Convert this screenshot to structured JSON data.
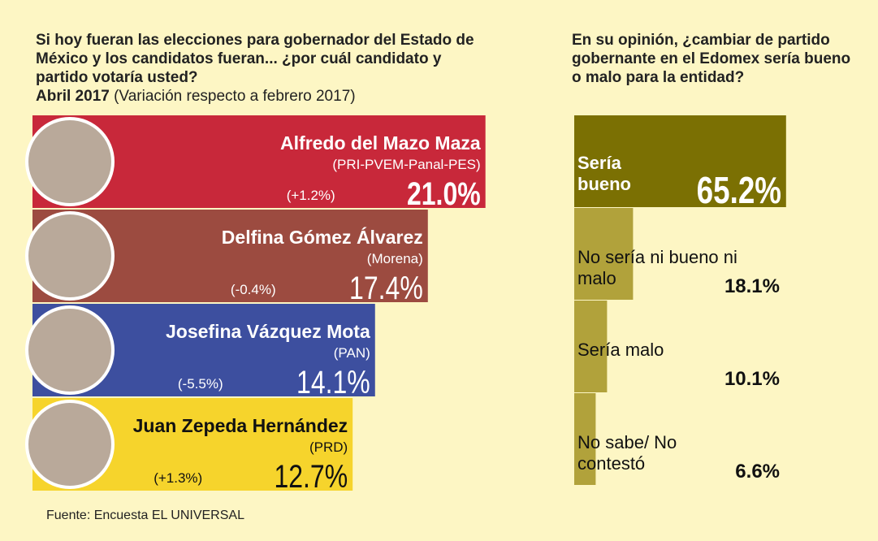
{
  "chart_data": [
    {
      "type": "hbar",
      "title": "Si hoy fueran las elecciones para gobernador del Estado de México y los candidatos fueran... ¿por cuál candidato y partido votaría usted?",
      "subtitle": "Abril 2017",
      "subtitle_note": "(Variación respecto a febrero 2017)",
      "categories": [
        "Alfredo del Mazo Maza",
        "Delfina Gómez Álvarez",
        "Josefina Vázquez Mota",
        "Juan Zepeda Hernández"
      ],
      "parties": [
        "(PRI-PVEM-Panal-PES)",
        "(Morena)",
        "(PAN)",
        "(PRD)"
      ],
      "change_labels": [
        "(+1.2%)",
        "(-0.4%)",
        "(-5.5%)",
        "(+1.3%)"
      ],
      "values": [
        21.0,
        17.4,
        14.1,
        12.7
      ],
      "value_labels": [
        "21.0%",
        "17.4%",
        "14.1%",
        "12.7%"
      ],
      "colors": [
        "#c8283a",
        "#9c4b40",
        "#3d4f9f",
        "#f6d42c"
      ],
      "source": "Fuente: Encuesta EL UNIVERSAL"
    },
    {
      "type": "step",
      "title": "En su opinión, ¿cambiar de partido gobernante en el Edomex sería bueno o malo para la entidad?",
      "categories": [
        "Sería bueno",
        "No sería ni bueno ni malo",
        "Sería malo",
        "No sabe/ No contestó"
      ],
      "values": [
        65.2,
        18.1,
        10.1,
        6.6
      ],
      "value_labels": [
        "65.2%",
        "18.1%",
        "10.1%",
        "6.6%"
      ],
      "colors": [
        "#7b7003",
        "#b1a23b",
        "#b1a23b",
        "#b1a23b"
      ]
    }
  ]
}
